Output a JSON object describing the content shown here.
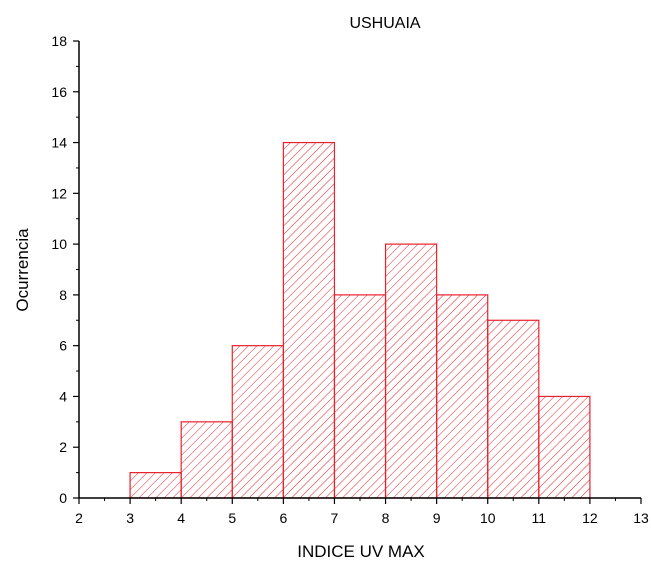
{
  "chart_data": {
    "type": "bar",
    "title": "USHUAIA",
    "xlabel": "INDICE UV MAX",
    "ylabel": "Ocurrencia",
    "xlim": [
      2,
      13
    ],
    "ylim": [
      0,
      18
    ],
    "x_ticks": [
      "2",
      "3",
      "4",
      "5",
      "6",
      "7",
      "8",
      "9",
      "10",
      "11",
      "12",
      "13"
    ],
    "y_ticks": [
      "0",
      "2",
      "4",
      "6",
      "8",
      "10",
      "12",
      "14",
      "16",
      "18"
    ],
    "bins": [
      {
        "start": 3,
        "end": 4,
        "value": 1
      },
      {
        "start": 4,
        "end": 5,
        "value": 3
      },
      {
        "start": 5,
        "end": 6,
        "value": 6
      },
      {
        "start": 6,
        "end": 7,
        "value": 14
      },
      {
        "start": 7,
        "end": 8,
        "value": 8
      },
      {
        "start": 8,
        "end": 9,
        "value": 10
      },
      {
        "start": 9,
        "end": 10,
        "value": 8
      },
      {
        "start": 10,
        "end": 11,
        "value": 7
      },
      {
        "start": 11,
        "end": 12,
        "value": 4
      }
    ],
    "bar_color": "#e8222b",
    "bar_fill": "diagonal-hatch",
    "grid": false,
    "legend": "none"
  }
}
